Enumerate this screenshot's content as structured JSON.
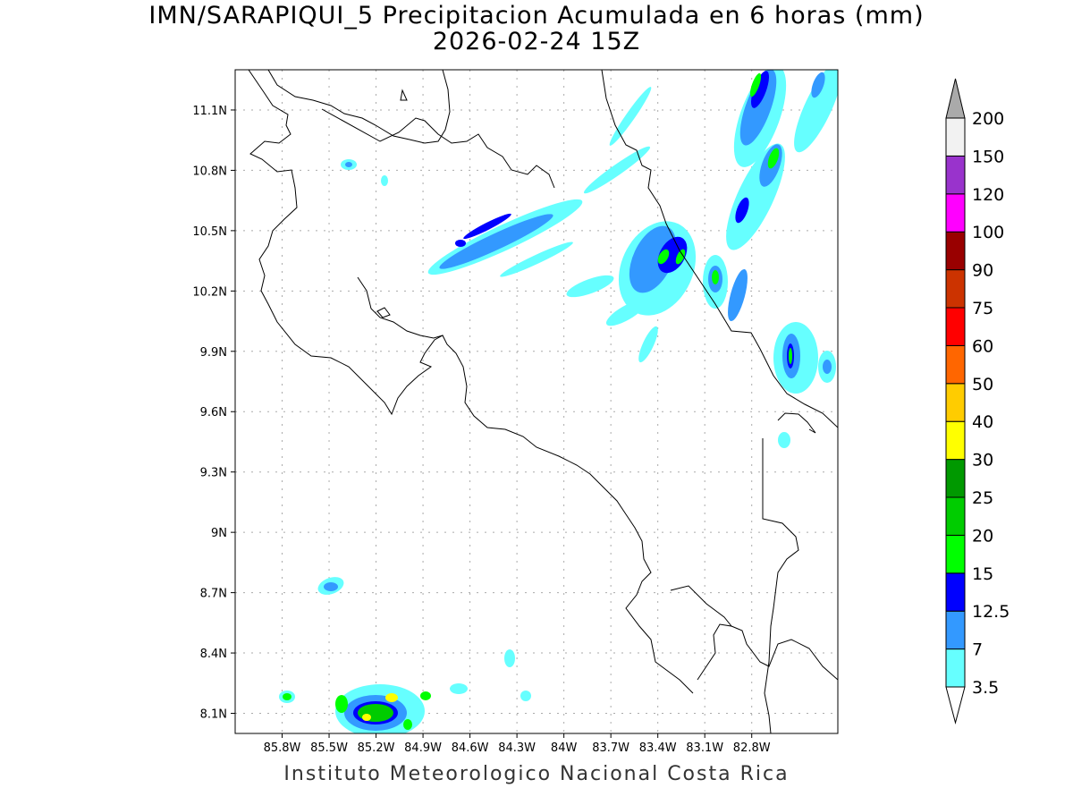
{
  "title": {
    "line1": "IMN/SARAPIQUI_5 Precipitacion Acumulada en 6 horas (mm)",
    "line2": "2026-02-24 15Z"
  },
  "footer": "Instituto Meteorologico Nacional Costa Rica",
  "map": {
    "lon_range": [
      -86.1,
      -82.25
    ],
    "lat_range": [
      8.0,
      11.3
    ],
    "lon_ticks": [
      {
        "value": -85.8,
        "label": "85.8W"
      },
      {
        "value": -85.5,
        "label": "85.5W"
      },
      {
        "value": -85.2,
        "label": "85.2W"
      },
      {
        "value": -84.9,
        "label": "84.9W"
      },
      {
        "value": -84.6,
        "label": "84.6W"
      },
      {
        "value": -84.3,
        "label": "84.3W"
      },
      {
        "value": -84.0,
        "label": "84W"
      },
      {
        "value": -83.7,
        "label": "83.7W"
      },
      {
        "value": -83.4,
        "label": "83.4W"
      },
      {
        "value": -83.1,
        "label": "83.1W"
      },
      {
        "value": -82.8,
        "label": "82.8W"
      }
    ],
    "lat_ticks": [
      {
        "value": 11.1,
        "label": "11.1N"
      },
      {
        "value": 10.8,
        "label": "10.8N"
      },
      {
        "value": 10.5,
        "label": "10.5N"
      },
      {
        "value": 10.2,
        "label": "10.2N"
      },
      {
        "value": 9.9,
        "label": "9.9N"
      },
      {
        "value": 9.6,
        "label": "9.6N"
      },
      {
        "value": 9.3,
        "label": "9.3N"
      },
      {
        "value": 9.0,
        "label": "9N"
      },
      {
        "value": 8.7,
        "label": "8.7N"
      },
      {
        "value": 8.4,
        "label": "8.4N"
      },
      {
        "value": 8.1,
        "label": "8.1N"
      }
    ]
  },
  "colorbar": {
    "labels": [
      "3.5",
      "7",
      "12.5",
      "15",
      "20",
      "25",
      "30",
      "40",
      "50",
      "60",
      "75",
      "90",
      "100",
      "120",
      "150",
      "200"
    ],
    "colors": [
      "#66ffff",
      "#3399ff",
      "#0000ff",
      "#00ff00",
      "#00cc00",
      "#009900",
      "#ffff00",
      "#ffcc00",
      "#ff6600",
      "#ff0000",
      "#cc3300",
      "#990000",
      "#ff00ff",
      "#9933cc",
      "#f2f2f2"
    ],
    "under_color": "#ffffff",
    "over_color": "#aaaaaa"
  }
}
